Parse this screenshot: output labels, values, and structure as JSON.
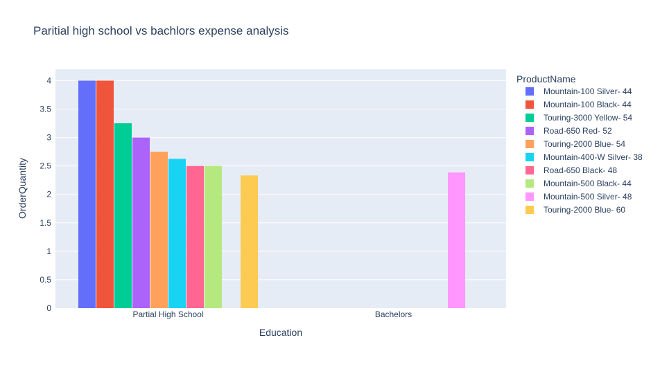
{
  "chart_data": {
    "type": "bar",
    "title": "Paritial high school vs bachlors expense analysis",
    "xlabel": "Education",
    "ylabel": "OrderQuantity",
    "categories": [
      "Partial High School",
      "Bachelors"
    ],
    "ylim": [
      0,
      4.2
    ],
    "yticks": [
      0,
      0.5,
      1,
      1.5,
      2,
      2.5,
      3,
      3.5,
      4
    ],
    "ytick_labels": [
      "0",
      "0.5",
      "1",
      "1.5",
      "2",
      "2.5",
      "3",
      "3.5",
      "4"
    ],
    "grid": true,
    "legend": {
      "title": "ProductName",
      "position": "right"
    },
    "series": [
      {
        "name": "Mountain-100 Silver- 44",
        "color": "#636efa",
        "values": [
          4,
          null
        ]
      },
      {
        "name": "Mountain-100 Black- 44",
        "color": "#ef553b",
        "values": [
          4,
          null
        ]
      },
      {
        "name": "Touring-3000 Yellow- 54",
        "color": "#00cc96",
        "values": [
          3.25,
          null
        ]
      },
      {
        "name": "Road-650 Red- 52",
        "color": "#ab63fa",
        "values": [
          3,
          null
        ]
      },
      {
        "name": "Touring-2000 Blue- 54",
        "color": "#ffa15a",
        "values": [
          2.75,
          null
        ]
      },
      {
        "name": "Mountain-400-W Silver- 38",
        "color": "#19d3f3",
        "values": [
          2.625,
          null
        ]
      },
      {
        "name": "Road-650 Black- 48",
        "color": "#ff6692",
        "values": [
          2.5,
          null
        ]
      },
      {
        "name": "Mountain-500 Black- 44",
        "color": "#b6e880",
        "values": [
          2.5,
          null
        ]
      },
      {
        "name": "Mountain-500 Silver- 48",
        "color": "#ff97ff",
        "values": [
          null,
          2.385
        ]
      },
      {
        "name": "Touring-2000 Blue- 60",
        "color": "#fecb52",
        "values": [
          2.333,
          null
        ]
      }
    ],
    "colors": {
      "plot_bg": "#e5ecf6",
      "grid": "#ffffff",
      "text": "#2a3f5f"
    }
  }
}
